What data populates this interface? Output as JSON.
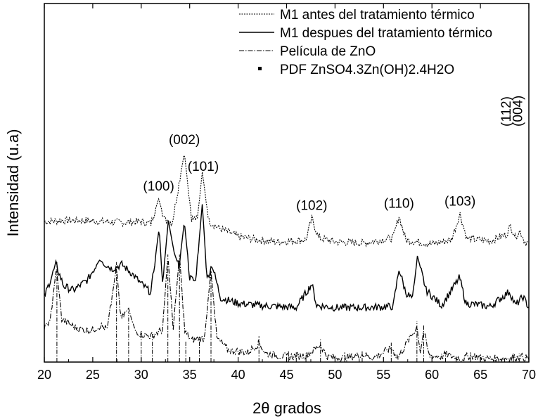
{
  "chart_data": {
    "type": "line",
    "title": "",
    "xlabel": "2θ  grados",
    "ylabel": "Intensidad (u.a)",
    "xlim": [
      20,
      70
    ],
    "x_ticks": [
      20,
      25,
      30,
      35,
      40,
      45,
      50,
      55,
      60,
      65,
      70
    ],
    "y_ticks_labeled": false,
    "grid": false,
    "legend_position": "top-right",
    "series": [
      {
        "name": "M1 antes del tratamiento térmico",
        "style": "dotted",
        "color": "#000000",
        "baseline": 0.29,
        "points": [
          [
            20,
            0.34
          ],
          [
            22,
            0.35
          ],
          [
            24,
            0.35
          ],
          [
            26,
            0.34
          ],
          [
            28,
            0.33
          ],
          [
            30,
            0.34
          ],
          [
            31,
            0.32
          ],
          [
            31.8,
            0.55
          ],
          [
            32.4,
            0.36
          ],
          [
            33.2,
            0.33
          ],
          [
            34.45,
            0.98
          ],
          [
            35.2,
            0.37
          ],
          [
            35.8,
            0.36
          ],
          [
            36.3,
            0.8
          ],
          [
            37,
            0.34
          ],
          [
            38,
            0.28
          ],
          [
            40,
            0.2
          ],
          [
            42,
            0.17
          ],
          [
            44,
            0.15
          ],
          [
            47,
            0.17
          ],
          [
            47.6,
            0.37
          ],
          [
            48.3,
            0.19
          ],
          [
            50,
            0.15
          ],
          [
            53,
            0.14
          ],
          [
            56,
            0.19
          ],
          [
            56.6,
            0.39
          ],
          [
            57.3,
            0.17
          ],
          [
            60,
            0.13
          ],
          [
            62,
            0.17
          ],
          [
            62.9,
            0.41
          ],
          [
            63.6,
            0.18
          ],
          [
            66,
            0.16
          ],
          [
            67.7,
            0.22
          ],
          [
            68.1,
            0.3
          ],
          [
            68.6,
            0.2
          ],
          [
            69.1,
            0.25
          ],
          [
            69.6,
            0.15
          ],
          [
            70,
            0.14
          ]
        ]
      },
      {
        "name": "M1 despues del tratamiento térmico",
        "style": "solid",
        "color": "#000000",
        "baseline": 0.14,
        "points": [
          [
            20,
            0.14
          ],
          [
            21.2,
            0.44
          ],
          [
            22,
            0.24
          ],
          [
            23,
            0.2
          ],
          [
            24.5,
            0.3
          ],
          [
            25,
            0.38
          ],
          [
            25.7,
            0.48
          ],
          [
            27,
            0.4
          ],
          [
            28,
            0.44
          ],
          [
            29,
            0.36
          ],
          [
            30,
            0.26
          ],
          [
            31,
            0.18
          ],
          [
            31.85,
            0.78
          ],
          [
            32.2,
            0.26
          ],
          [
            32.8,
            0.85
          ],
          [
            33.4,
            0.55
          ],
          [
            33.9,
            0.42
          ],
          [
            34.45,
            0.84
          ],
          [
            35,
            0.32
          ],
          [
            35.6,
            0.28
          ],
          [
            36.3,
            1.0
          ],
          [
            36.8,
            0.3
          ],
          [
            37.3,
            0.44
          ],
          [
            38.2,
            0.13
          ],
          [
            40,
            0.08
          ],
          [
            42,
            0.06
          ],
          [
            44,
            0.05
          ],
          [
            46,
            0.04
          ],
          [
            47.6,
            0.26
          ],
          [
            48.1,
            0.06
          ],
          [
            50,
            0.04
          ],
          [
            53,
            0.04
          ],
          [
            56,
            0.05
          ],
          [
            56.6,
            0.4
          ],
          [
            57.3,
            0.18
          ],
          [
            58,
            0.12
          ],
          [
            58.5,
            0.52
          ],
          [
            59.4,
            0.2
          ],
          [
            61,
            0.06
          ],
          [
            62.85,
            0.32
          ],
          [
            63.5,
            0.08
          ],
          [
            66,
            0.05
          ],
          [
            68,
            0.19
          ],
          [
            68.6,
            0.06
          ],
          [
            69.4,
            0.14
          ],
          [
            70,
            0.04
          ]
        ]
      },
      {
        "name": "Película de ZnO",
        "style": "dash-dot",
        "color": "#000000",
        "baseline": 0.0,
        "points": [
          [
            20,
            0.32
          ],
          [
            20.6,
            0.38
          ],
          [
            21.25,
            0.88
          ],
          [
            21.8,
            0.4
          ],
          [
            23,
            0.33
          ],
          [
            24,
            0.3
          ],
          [
            25,
            0.3
          ],
          [
            25.8,
            0.34
          ],
          [
            26.5,
            0.3
          ],
          [
            27.45,
            0.89
          ],
          [
            27.9,
            0.4
          ],
          [
            28.7,
            0.5
          ],
          [
            29.3,
            0.3
          ],
          [
            30,
            0.26
          ],
          [
            31,
            0.24
          ],
          [
            31.4,
            0.26
          ],
          [
            32.2,
            0.3
          ],
          [
            32.75,
            1.0
          ],
          [
            33.3,
            0.3
          ],
          [
            33.95,
            1.0
          ],
          [
            34.5,
            0.28
          ],
          [
            35.2,
            0.2
          ],
          [
            36,
            0.22
          ],
          [
            36.5,
            0.22
          ],
          [
            37.2,
            0.85
          ],
          [
            37.8,
            0.22
          ],
          [
            39,
            0.11
          ],
          [
            41,
            0.09
          ],
          [
            42.2,
            0.18
          ],
          [
            42.8,
            0.08
          ],
          [
            45,
            0.05
          ],
          [
            47,
            0.06
          ],
          [
            48.5,
            0.16
          ],
          [
            49.2,
            0.05
          ],
          [
            51,
            0.04
          ],
          [
            52.8,
            0.07
          ],
          [
            54,
            0.04
          ],
          [
            55.8,
            0.13
          ],
          [
            56.5,
            0.04
          ],
          [
            58.45,
            0.33
          ],
          [
            58.8,
            0.1
          ],
          [
            59.15,
            0.29
          ],
          [
            59.7,
            0.06
          ],
          [
            61,
            0.05
          ],
          [
            61.4,
            0.07
          ],
          [
            63,
            0.03
          ],
          [
            63.9,
            0.06
          ],
          [
            66,
            0.03
          ],
          [
            68.3,
            0.04
          ],
          [
            69.2,
            0.05
          ],
          [
            70,
            0.03
          ]
        ]
      },
      {
        "name": "PDF ZnSO4.3Zn(OH)2.4H2O",
        "style": "sticks",
        "color": "#000000",
        "baseline": 0.0,
        "x": [
          21.3,
          27.45,
          28.7,
          30.0,
          31.15,
          32.75,
          33.95,
          34.6,
          36.0,
          37.2,
          42.15,
          45.2,
          46.0,
          47.0,
          48.5,
          51.0,
          52.8,
          55.8,
          58.45,
          59.15,
          61.4,
          64.0,
          68.4,
          69.0
        ],
        "heights": [
          0.93,
          0.93,
          0.47,
          0.28,
          0.26,
          1.0,
          1.0,
          0.2,
          0.22,
          0.85,
          0.24,
          0.1,
          0.09,
          0.08,
          0.21,
          0.09,
          0.1,
          0.18,
          0.38,
          0.34,
          0.09,
          0.09,
          0.08,
          0.08
        ]
      }
    ],
    "annotations": [
      {
        "text": "(100)",
        "x": 31.8
      },
      {
        "text": "(002)",
        "x": 34.45
      },
      {
        "text": "(101)",
        "x": 36.4
      },
      {
        "text": "(102)",
        "x": 47.6
      },
      {
        "text": "(110)",
        "x": 56.6
      },
      {
        "text": "(103)",
        "x": 62.9
      },
      {
        "text": "(112)",
        "x": 68.1,
        "rotated": true
      },
      {
        "text": "(004)",
        "x": 69.3,
        "rotated": true
      }
    ]
  }
}
